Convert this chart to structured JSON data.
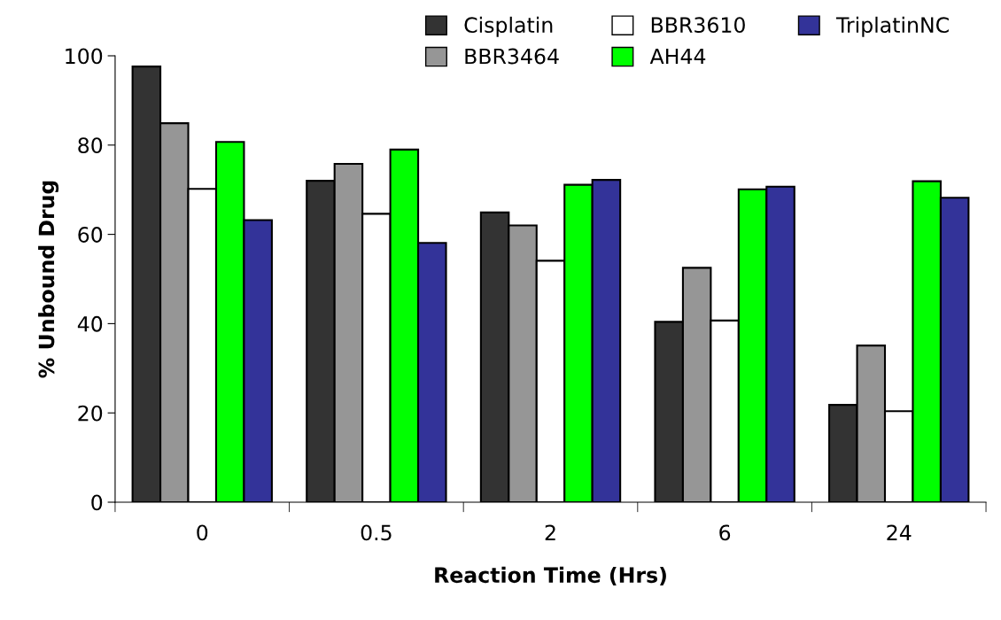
{
  "chart_data": {
    "type": "bar",
    "xlabel": "Reaction Time (Hrs)",
    "ylabel": "% Unbound Drug",
    "categories": [
      "0",
      "0.5",
      "2",
      "6",
      "24"
    ],
    "series": [
      {
        "name": "Cisplatin",
        "color": "#333333",
        "values": [
          97.6,
          72.0,
          64.9,
          40.4,
          21.8
        ]
      },
      {
        "name": "BBR3464",
        "color": "#969696",
        "values": [
          84.9,
          75.8,
          62.0,
          52.5,
          35.1
        ]
      },
      {
        "name": "BBR3610",
        "color": "#ffffff",
        "values": [
          70.2,
          64.6,
          54.1,
          40.7,
          20.4
        ]
      },
      {
        "name": "AH44",
        "color": "#00ff00",
        "values": [
          80.7,
          79.0,
          71.1,
          70.1,
          71.9
        ]
      },
      {
        "name": "TriplatinNC",
        "color": "#333399",
        "values": [
          63.2,
          58.1,
          72.2,
          70.7,
          68.2
        ]
      }
    ],
    "ylim": [
      0,
      100
    ],
    "yticks": [
      0,
      20,
      40,
      60,
      80,
      100
    ],
    "grid": false,
    "legend": "top right"
  }
}
